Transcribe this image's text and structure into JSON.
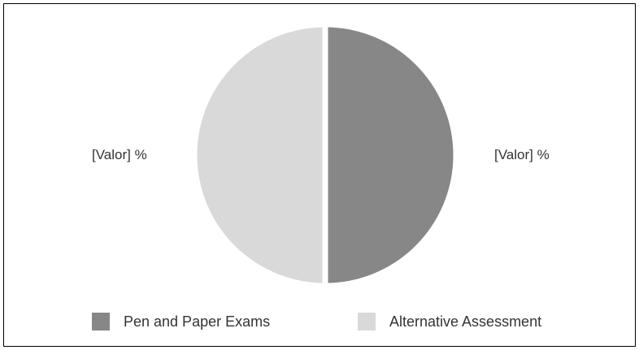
{
  "chart_data": {
    "type": "pie",
    "categories": [
      "Pen and Paper Exams",
      "Alternative Assessment"
    ],
    "values": [
      50,
      50
    ],
    "colors": [
      "#878787",
      "#d9d9d9"
    ],
    "data_labels": [
      "[Valor] %",
      "[Valor] %"
    ],
    "start_angle_degrees": 0,
    "direction": "clockwise",
    "legend_position": "bottom",
    "title": ""
  },
  "legend": {
    "items": [
      {
        "label": "Pen and Paper Exams",
        "color": "#878787"
      },
      {
        "label": "Alternative Assessment",
        "color": "#d9d9d9"
      }
    ]
  }
}
